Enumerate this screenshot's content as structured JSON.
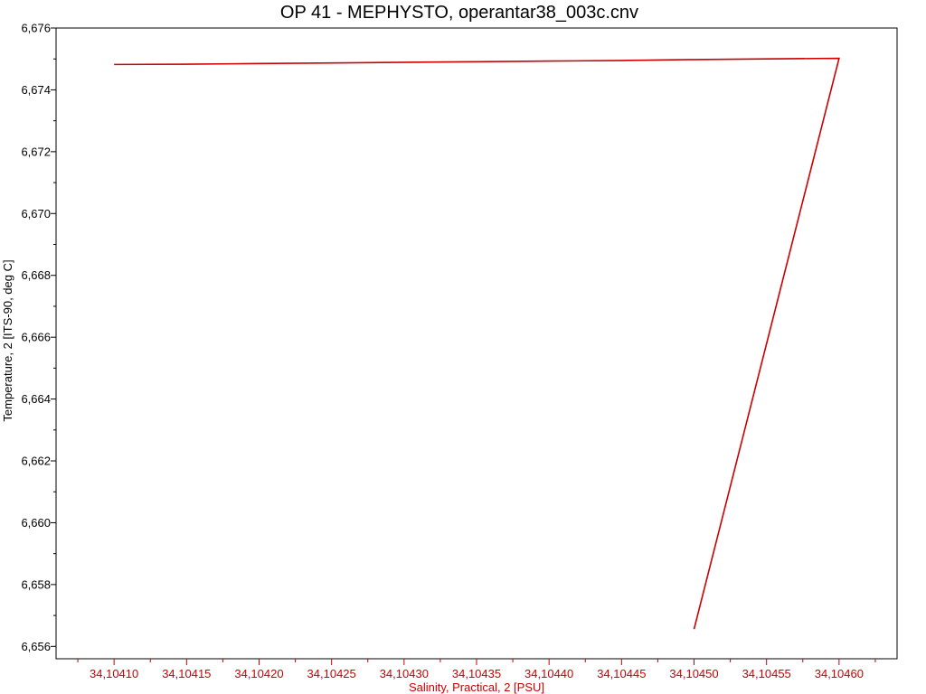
{
  "chart_data": {
    "type": "line",
    "title": "OP 41 - MEPHYSTO, operantar38_003c.cnv",
    "xlabel": "Salinity, Practical, 2 [PSU]",
    "ylabel": "Temperature, 2 [ITS-90, deg C]",
    "xlim": [
      34.10406,
      34.10464
    ],
    "ylim": [
      6.6556,
      6.676
    ],
    "grid": false,
    "x_ticks": [
      34.1041,
      34.10415,
      34.1042,
      34.10425,
      34.1043,
      34.10435,
      34.1044,
      34.10445,
      34.1045,
      34.10455,
      34.1046
    ],
    "x_tick_labels": [
      "34,10410",
      "34,10415",
      "34,10420",
      "34,10425",
      "34,10430",
      "34,10435",
      "34,10440",
      "34,10445",
      "34,10450",
      "34,10455",
      "34,10460"
    ],
    "y_ticks": [
      6.656,
      6.658,
      6.66,
      6.662,
      6.664,
      6.666,
      6.668,
      6.67,
      6.672,
      6.674,
      6.676
    ],
    "y_tick_labels": [
      "6,656",
      "6,658",
      "6,660",
      "6,662",
      "6,664",
      "6,666",
      "6,668",
      "6,670",
      "6,672",
      "6,674",
      "6,676"
    ],
    "x_axis_color": "#cc0000",
    "line_color": "#cc0000",
    "series": [
      {
        "x": [
          34.1041,
          34.10415,
          34.1042,
          34.10425,
          34.1043,
          34.10435,
          34.1044,
          34.10445,
          34.1045,
          34.10455,
          34.1046,
          34.1045
        ],
        "y": [
          6.67482,
          6.67483,
          6.67485,
          6.67487,
          6.67489,
          6.67491,
          6.67493,
          6.67495,
          6.67498,
          6.675,
          6.67502,
          6.65656
        ]
      }
    ]
  }
}
